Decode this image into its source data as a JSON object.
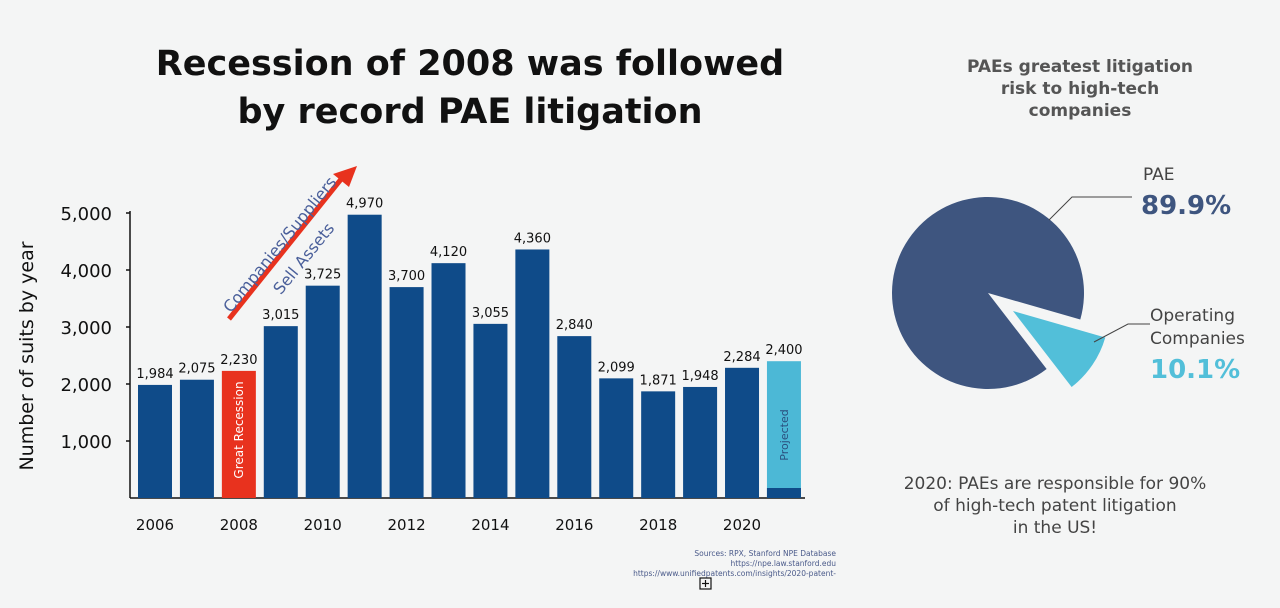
{
  "title_line1": "Recession of 2008 was followed",
  "title_line2": "by record PAE litigation",
  "chart_data": [
    {
      "type": "bar",
      "title": "Recession of 2008 was followed by record PAE litigation",
      "ylabel": "Number of suits by year",
      "xlabel": "",
      "ylim": [
        0,
        5000
      ],
      "yticks": [
        "1,000",
        "2,000",
        "3,000",
        "4,000",
        "5,000"
      ],
      "ytick_values": [
        1000,
        2000,
        3000,
        4000,
        5000
      ],
      "xtick_labels": [
        "2006",
        "2008",
        "2010",
        "2012",
        "2014",
        "2016",
        "2018",
        "2020"
      ],
      "categories": [
        "2006",
        "2007",
        "2008",
        "2009",
        "2010",
        "2011",
        "2012",
        "2013",
        "2014",
        "2015",
        "2016",
        "2017",
        "2018",
        "2019",
        "2020",
        "2021"
      ],
      "values": [
        1984,
        2075,
        2230,
        3015,
        3725,
        4970,
        3700,
        4120,
        3055,
        4360,
        2840,
        2099,
        1871,
        1948,
        2284,
        2400
      ],
      "value_labels": [
        "1,984",
        "2,075",
        "2,230",
        "3,015",
        "3,725",
        "4,970",
        "3,700",
        "4,120",
        "3,055",
        "4,360",
        "2,840",
        "2,099",
        "1,871",
        "1,948",
        "2,284",
        "2,400"
      ],
      "bar_notes": {
        "2008": "Great Recession",
        "2021": "Projected"
      },
      "annotation_line1": "Companies/Suppliers",
      "annotation_line2": "Sell Assets",
      "colors": {
        "bar": "#0f4b89",
        "recession": "#e8321e",
        "projected": "#4cb8d6",
        "arrow": "#e8321e",
        "annotation": "#4a5f9a"
      }
    },
    {
      "type": "pie",
      "title": "PAEs greatest litigation risk to high-tech companies",
      "slices": [
        {
          "label": "PAE",
          "value": 89.9,
          "display": "89.9%",
          "color": "#3e557f"
        },
        {
          "label": "Operating Companies",
          "label_line1": "Operating",
          "label_line2": "Companies",
          "value": 10.1,
          "display": "10.1%",
          "color": "#52bfd9"
        }
      ]
    }
  ],
  "pie_title_line1": "PAEs greatest litigation",
  "pie_title_line2": "risk to high-tech",
  "pie_title_line3": "companies",
  "footer_line1": "2020: PAEs are responsible for 90%",
  "footer_line2": "of high-tech patent litigation",
  "footer_line3": "in the US!",
  "sources_line1": "Sources: RPX, Stanford NPE Database",
  "sources_line2": "https://npe.law.stanford.edu",
  "sources_line3": "https://www.unifiedpatents.com/insights/2020-patent-"
}
